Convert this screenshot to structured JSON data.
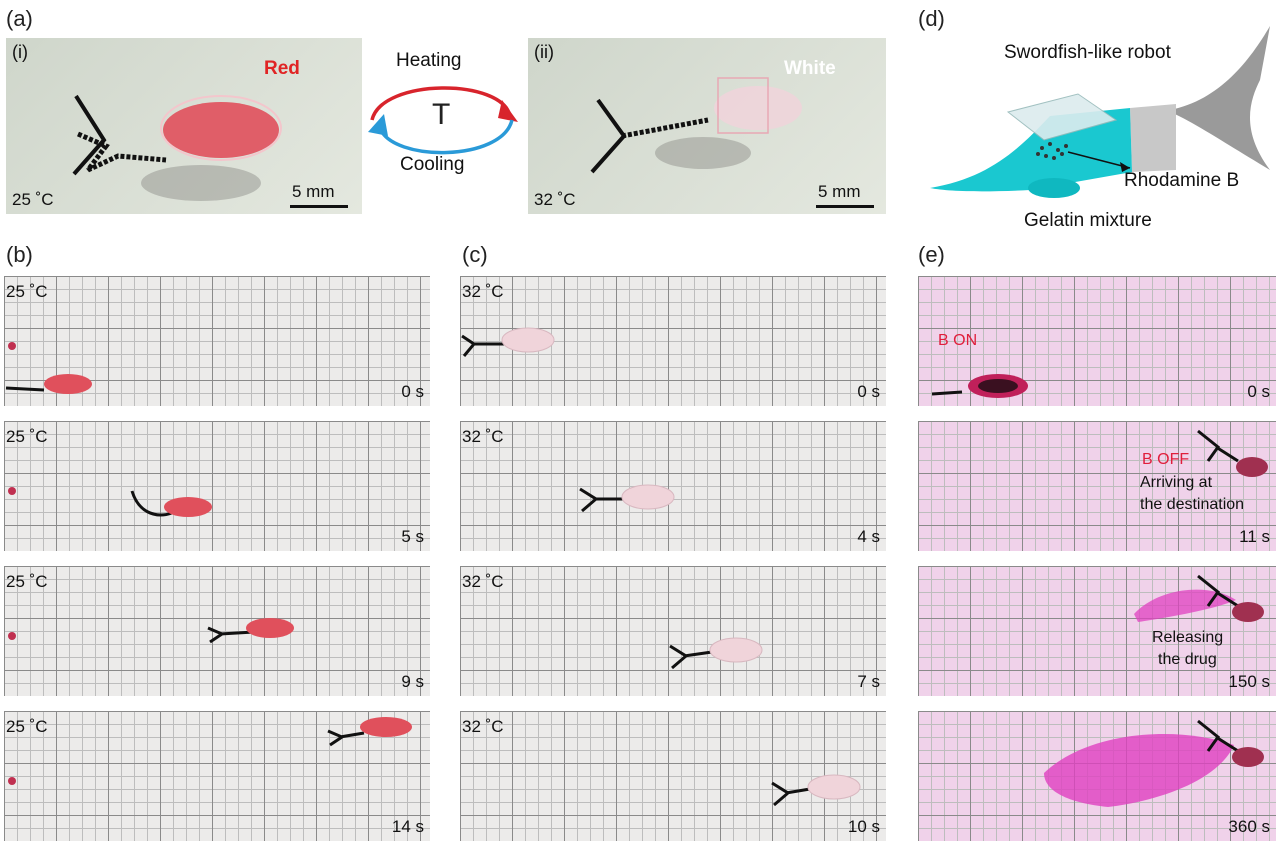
{
  "panel_a": {
    "label": "(a)",
    "left": {
      "sub": "(i)",
      "color_word": "Red",
      "temperature": "25 ˚C",
      "scale": "5 mm"
    },
    "cycle": {
      "top": "Heating",
      "center": "T",
      "bottom": "Cooling"
    },
    "right": {
      "sub": "(ii)",
      "color_word": "White",
      "temperature": "32 ˚C",
      "scale": "5 mm"
    }
  },
  "panel_b": {
    "label": "(b)",
    "frames": [
      {
        "temp": "25 ˚C",
        "time": "0 s"
      },
      {
        "temp": "25 ˚C",
        "time": "5 s"
      },
      {
        "temp": "25 ˚C",
        "time": "9 s"
      },
      {
        "temp": "25 ˚C",
        "time": "14 s"
      }
    ]
  },
  "panel_c": {
    "label": "(c)",
    "frames": [
      {
        "temp": "32 ˚C",
        "time": "0 s"
      },
      {
        "temp": "32 ˚C",
        "time": "4 s"
      },
      {
        "temp": "32 ˚C",
        "time": "7 s"
      },
      {
        "temp": "32 ˚C",
        "time": "10 s"
      }
    ]
  },
  "panel_d": {
    "label": "(d)",
    "title": "Swordfish-like robot",
    "callout_1": "Rhodamine B",
    "callout_2": "Gelatin mixture"
  },
  "panel_e": {
    "label": "(e)",
    "frames": [
      {
        "time": "0 s",
        "note_red": "B ON"
      },
      {
        "time": "11 s",
        "note_red": "B OFF",
        "note_1": "Arriving at",
        "note_2": "the destination"
      },
      {
        "time": "150 s",
        "note_1": "Releasing",
        "note_2": "the drug"
      },
      {
        "time": "360 s"
      }
    ]
  },
  "colors": {
    "body_red": "#e0505c",
    "body_white": "#f0d4da",
    "heating_arrow": "#d8242c",
    "cooling_arrow": "#2a9ad8",
    "rhodamine": "#e040c0",
    "robot_cyan": "#1ac8d0"
  }
}
